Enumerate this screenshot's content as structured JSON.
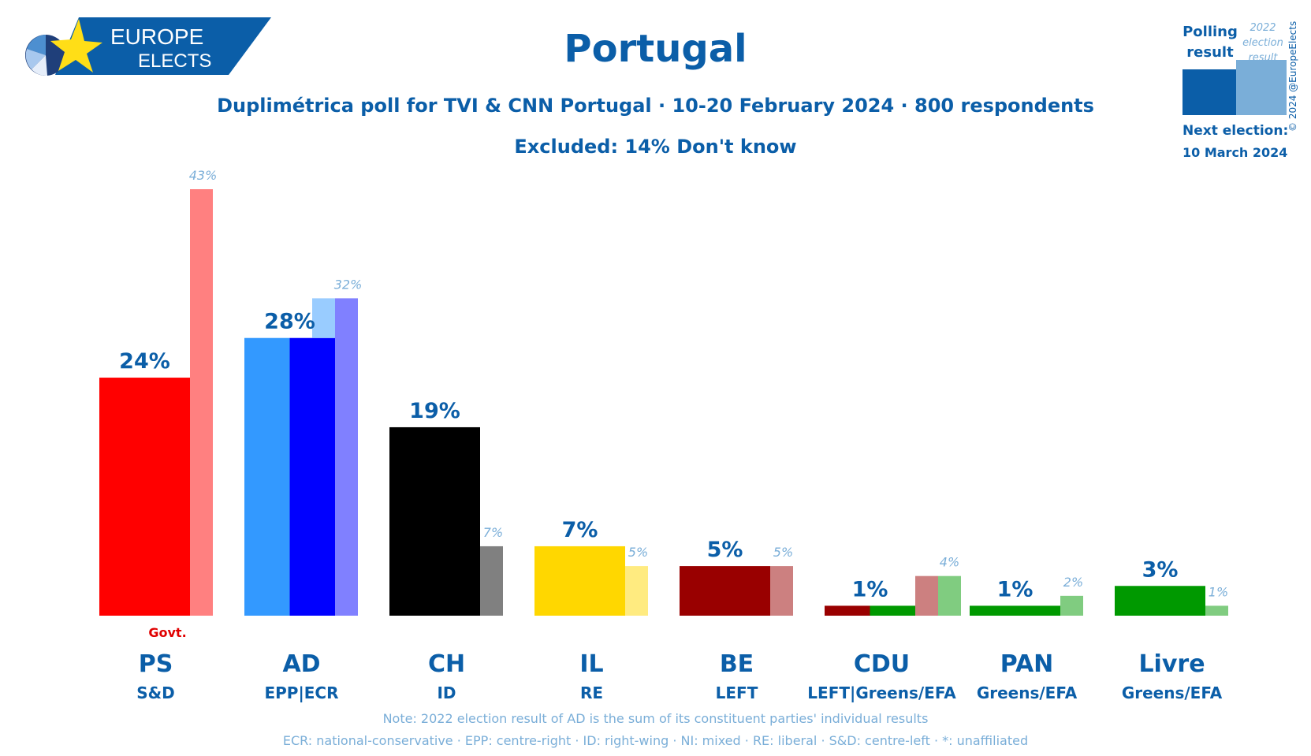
{
  "logo": {
    "line1": "EUROPE",
    "line2": "ELECTS"
  },
  "title": "Portugal",
  "subtitle": "Duplimétrica poll for TVI & CNN Portugal · 10-20 February 2024 · 800 respondents",
  "excluded": "Excluded: 14% Don't know",
  "legend": {
    "polling": "Polling result",
    "election": "2022 election result",
    "next_label": "Next election:",
    "next_date": "10 March 2024",
    "poll_color": "#0b5ea8",
    "election_color": "#7aaed8"
  },
  "copyright": "© 2024 @EuropeElects",
  "notes": {
    "line1": "Note: 2022 election result of AD is the sum of its constituent parties' individual results",
    "line2": "ECR: national-conservative · EPP: centre-right · ID: right-wing · NI: mixed · RE: liberal · S&D: centre-left · *: unaffiliated"
  },
  "chart_data": {
    "type": "bar",
    "ylim": [
      0,
      45
    ],
    "categories": [
      "PS",
      "AD",
      "CH",
      "IL",
      "BE",
      "CDU",
      "PAN",
      "Livre"
    ],
    "groups": [
      "S&D",
      "EPP|ECR",
      "ID",
      "RE",
      "LEFT",
      "LEFT|Greens/EFA",
      "Greens/EFA",
      "Greens/EFA"
    ],
    "series": [
      {
        "name": "Polling result",
        "values": [
          24,
          28,
          19,
          7,
          5,
          1,
          1,
          3
        ],
        "labels": [
          "24%",
          "28%",
          "19%",
          "7%",
          "5%",
          "1%",
          "1%",
          "3%"
        ]
      },
      {
        "name": "2022 election result",
        "values": [
          43,
          32,
          7,
          5,
          5,
          4,
          2,
          1
        ],
        "labels": [
          "43%",
          "32%",
          "7%",
          "5%",
          "5%",
          "4%",
          "2%",
          "1%"
        ]
      }
    ],
    "govt_label": "Govt.",
    "govt_party": "PS",
    "colors": {
      "PS": {
        "poll": [
          "#ff0000"
        ],
        "elec": [
          "#ff8080"
        ]
      },
      "AD": {
        "poll": [
          "#3399ff",
          "#0000ff"
        ],
        "elec": [
          "#99ccff",
          "#8080ff"
        ],
        "poll_split": [
          14,
          14
        ],
        "elec_split": [
          28.5,
          3.5
        ]
      },
      "CH": {
        "poll": [
          "#000000"
        ],
        "elec": [
          "#808080"
        ]
      },
      "IL": {
        "poll": [
          "#ffd700"
        ],
        "elec": [
          "#ffeb80"
        ]
      },
      "BE": {
        "poll": [
          "#990000"
        ],
        "elec": [
          "#cc8080"
        ]
      },
      "CDU": {
        "poll": [
          "#990000",
          "#009900"
        ],
        "elec": [
          "#cc8080",
          "#80cc80"
        ]
      },
      "PAN": {
        "poll": [
          "#009900"
        ],
        "elec": [
          "#80cc80"
        ]
      },
      "Livre": {
        "poll": [
          "#009900"
        ],
        "elec": [
          "#80cc80"
        ]
      }
    }
  }
}
